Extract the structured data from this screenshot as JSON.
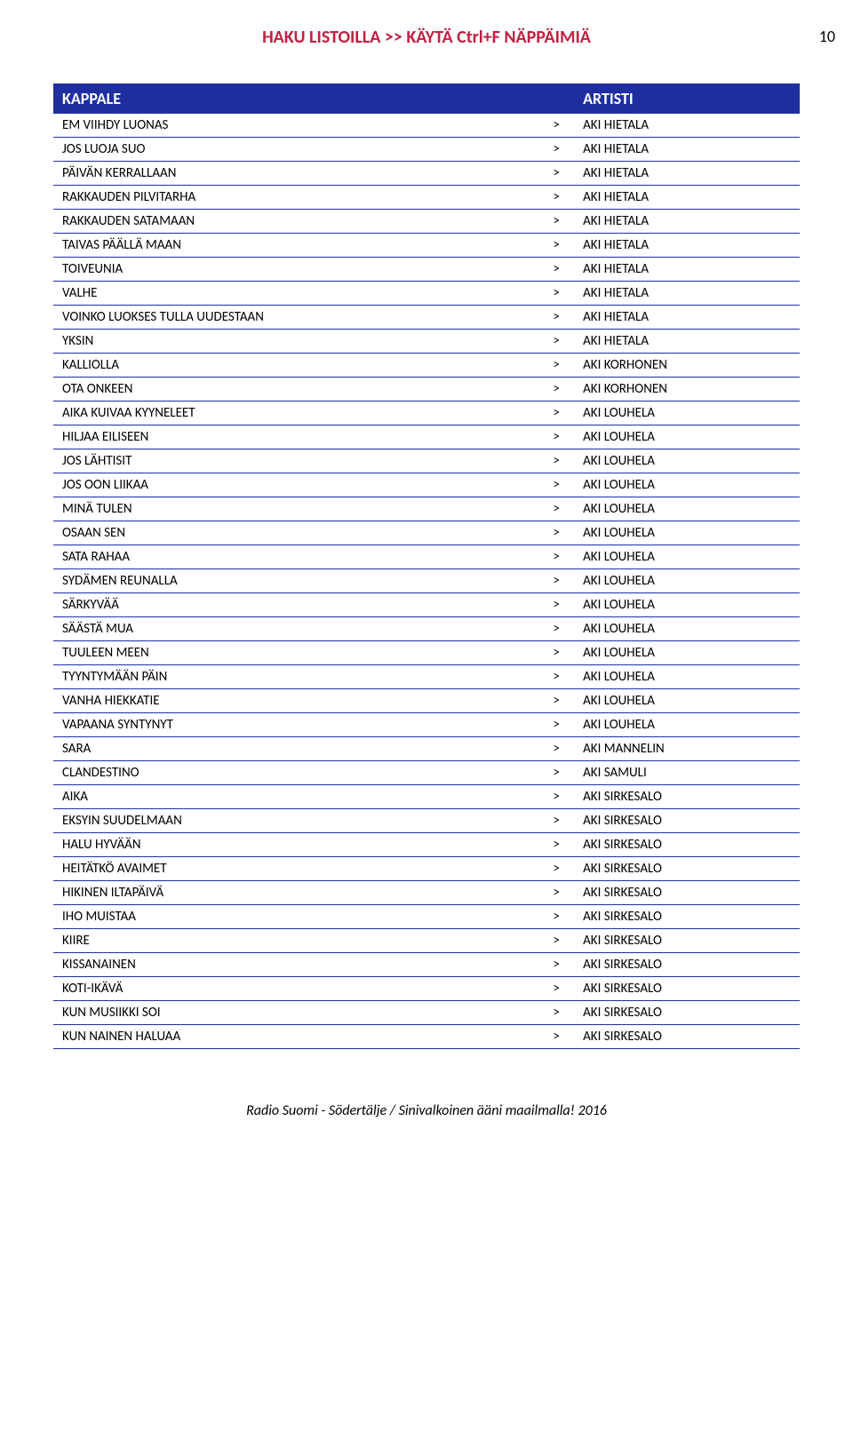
{
  "header": {
    "title": "HAKU LISTOILLA >> KÄYTÄ Ctrl+F NÄPPÄIMIÄ",
    "title_color": "#c02040",
    "page_number": "10"
  },
  "table": {
    "header_bg": "#1f2f9f",
    "header_text_color": "#ffffff",
    "row_border_color": "#1f2f9f",
    "columns": {
      "kappale": "KAPPALE",
      "artisti": "ARTISTI"
    },
    "separator": ">",
    "rows": [
      {
        "kappale": "EM VIIHDY LUONAS",
        "artisti": "AKI HIETALA"
      },
      {
        "kappale": "JOS LUOJA SUO",
        "artisti": "AKI HIETALA"
      },
      {
        "kappale": "PÄIVÄN KERRALLAAN",
        "artisti": "AKI HIETALA"
      },
      {
        "kappale": "RAKKAUDEN PILVITARHA",
        "artisti": "AKI HIETALA"
      },
      {
        "kappale": "RAKKAUDEN SATAMAAN",
        "artisti": "AKI HIETALA"
      },
      {
        "kappale": "TAIVAS PÄÄLLÄ MAAN",
        "artisti": "AKI HIETALA"
      },
      {
        "kappale": "TOIVEUNIA",
        "artisti": "AKI HIETALA"
      },
      {
        "kappale": "VALHE",
        "artisti": "AKI HIETALA"
      },
      {
        "kappale": "VOINKO LUOKSES TULLA UUDESTAAN",
        "artisti": "AKI HIETALA"
      },
      {
        "kappale": "YKSIN",
        "artisti": "AKI HIETALA"
      },
      {
        "kappale": "KALLIOLLA",
        "artisti": "AKI KORHONEN"
      },
      {
        "kappale": "OTA ONKEEN",
        "artisti": "AKI KORHONEN"
      },
      {
        "kappale": "AIKA KUIVAA KYYNELEET",
        "artisti": "AKI LOUHELA"
      },
      {
        "kappale": "HILJAA EILISEEN",
        "artisti": "AKI LOUHELA"
      },
      {
        "kappale": "JOS LÄHTISIT",
        "artisti": "AKI LOUHELA"
      },
      {
        "kappale": "JOS OON LIIKAA",
        "artisti": "AKI LOUHELA"
      },
      {
        "kappale": "MINÄ TULEN",
        "artisti": "AKI LOUHELA"
      },
      {
        "kappale": "OSAAN SEN",
        "artisti": "AKI LOUHELA"
      },
      {
        "kappale": "SATA RAHAA",
        "artisti": "AKI LOUHELA"
      },
      {
        "kappale": "SYDÄMEN REUNALLA",
        "artisti": "AKI LOUHELA"
      },
      {
        "kappale": "SÄRKYVÄÄ",
        "artisti": "AKI LOUHELA"
      },
      {
        "kappale": "SÄÄSTÄ MUA",
        "artisti": "AKI LOUHELA"
      },
      {
        "kappale": "TUULEEN MEEN",
        "artisti": "AKI LOUHELA"
      },
      {
        "kappale": "TYYNTYMÄÄN PÄIN",
        "artisti": "AKI LOUHELA"
      },
      {
        "kappale": "VANHA HIEKKATIE",
        "artisti": "AKI LOUHELA"
      },
      {
        "kappale": "VAPAANA SYNTYNYT",
        "artisti": "AKI LOUHELA"
      },
      {
        "kappale": "SARA",
        "artisti": "AKI MANNELIN"
      },
      {
        "kappale": "CLANDESTINO",
        "artisti": "AKI SAMULI"
      },
      {
        "kappale": "AIKA",
        "artisti": "AKI SIRKESALO"
      },
      {
        "kappale": "EKSYIN SUUDELMAAN",
        "artisti": "AKI SIRKESALO"
      },
      {
        "kappale": "HALU HYVÄÄN",
        "artisti": "AKI SIRKESALO"
      },
      {
        "kappale": "HEITÄTKÖ AVAIMET",
        "artisti": "AKI SIRKESALO"
      },
      {
        "kappale": "HIKINEN ILTAPÄIVÄ",
        "artisti": "AKI SIRKESALO"
      },
      {
        "kappale": "IHO MUISTAA",
        "artisti": "AKI SIRKESALO"
      },
      {
        "kappale": "KIIRE",
        "artisti": "AKI SIRKESALO"
      },
      {
        "kappale": "KISSANAINEN",
        "artisti": "AKI SIRKESALO"
      },
      {
        "kappale": "KOTI-IKÄVÄ",
        "artisti": "AKI SIRKESALO"
      },
      {
        "kappale": "KUN MUSIIKKI SOI",
        "artisti": "AKI SIRKESALO"
      },
      {
        "kappale": "KUN NAINEN HALUAA",
        "artisti": "AKI SIRKESALO"
      }
    ]
  },
  "footer": {
    "text": "Radio Suomi - Södertälje / Sinivalkoinen ääni maailmalla!  2016"
  }
}
